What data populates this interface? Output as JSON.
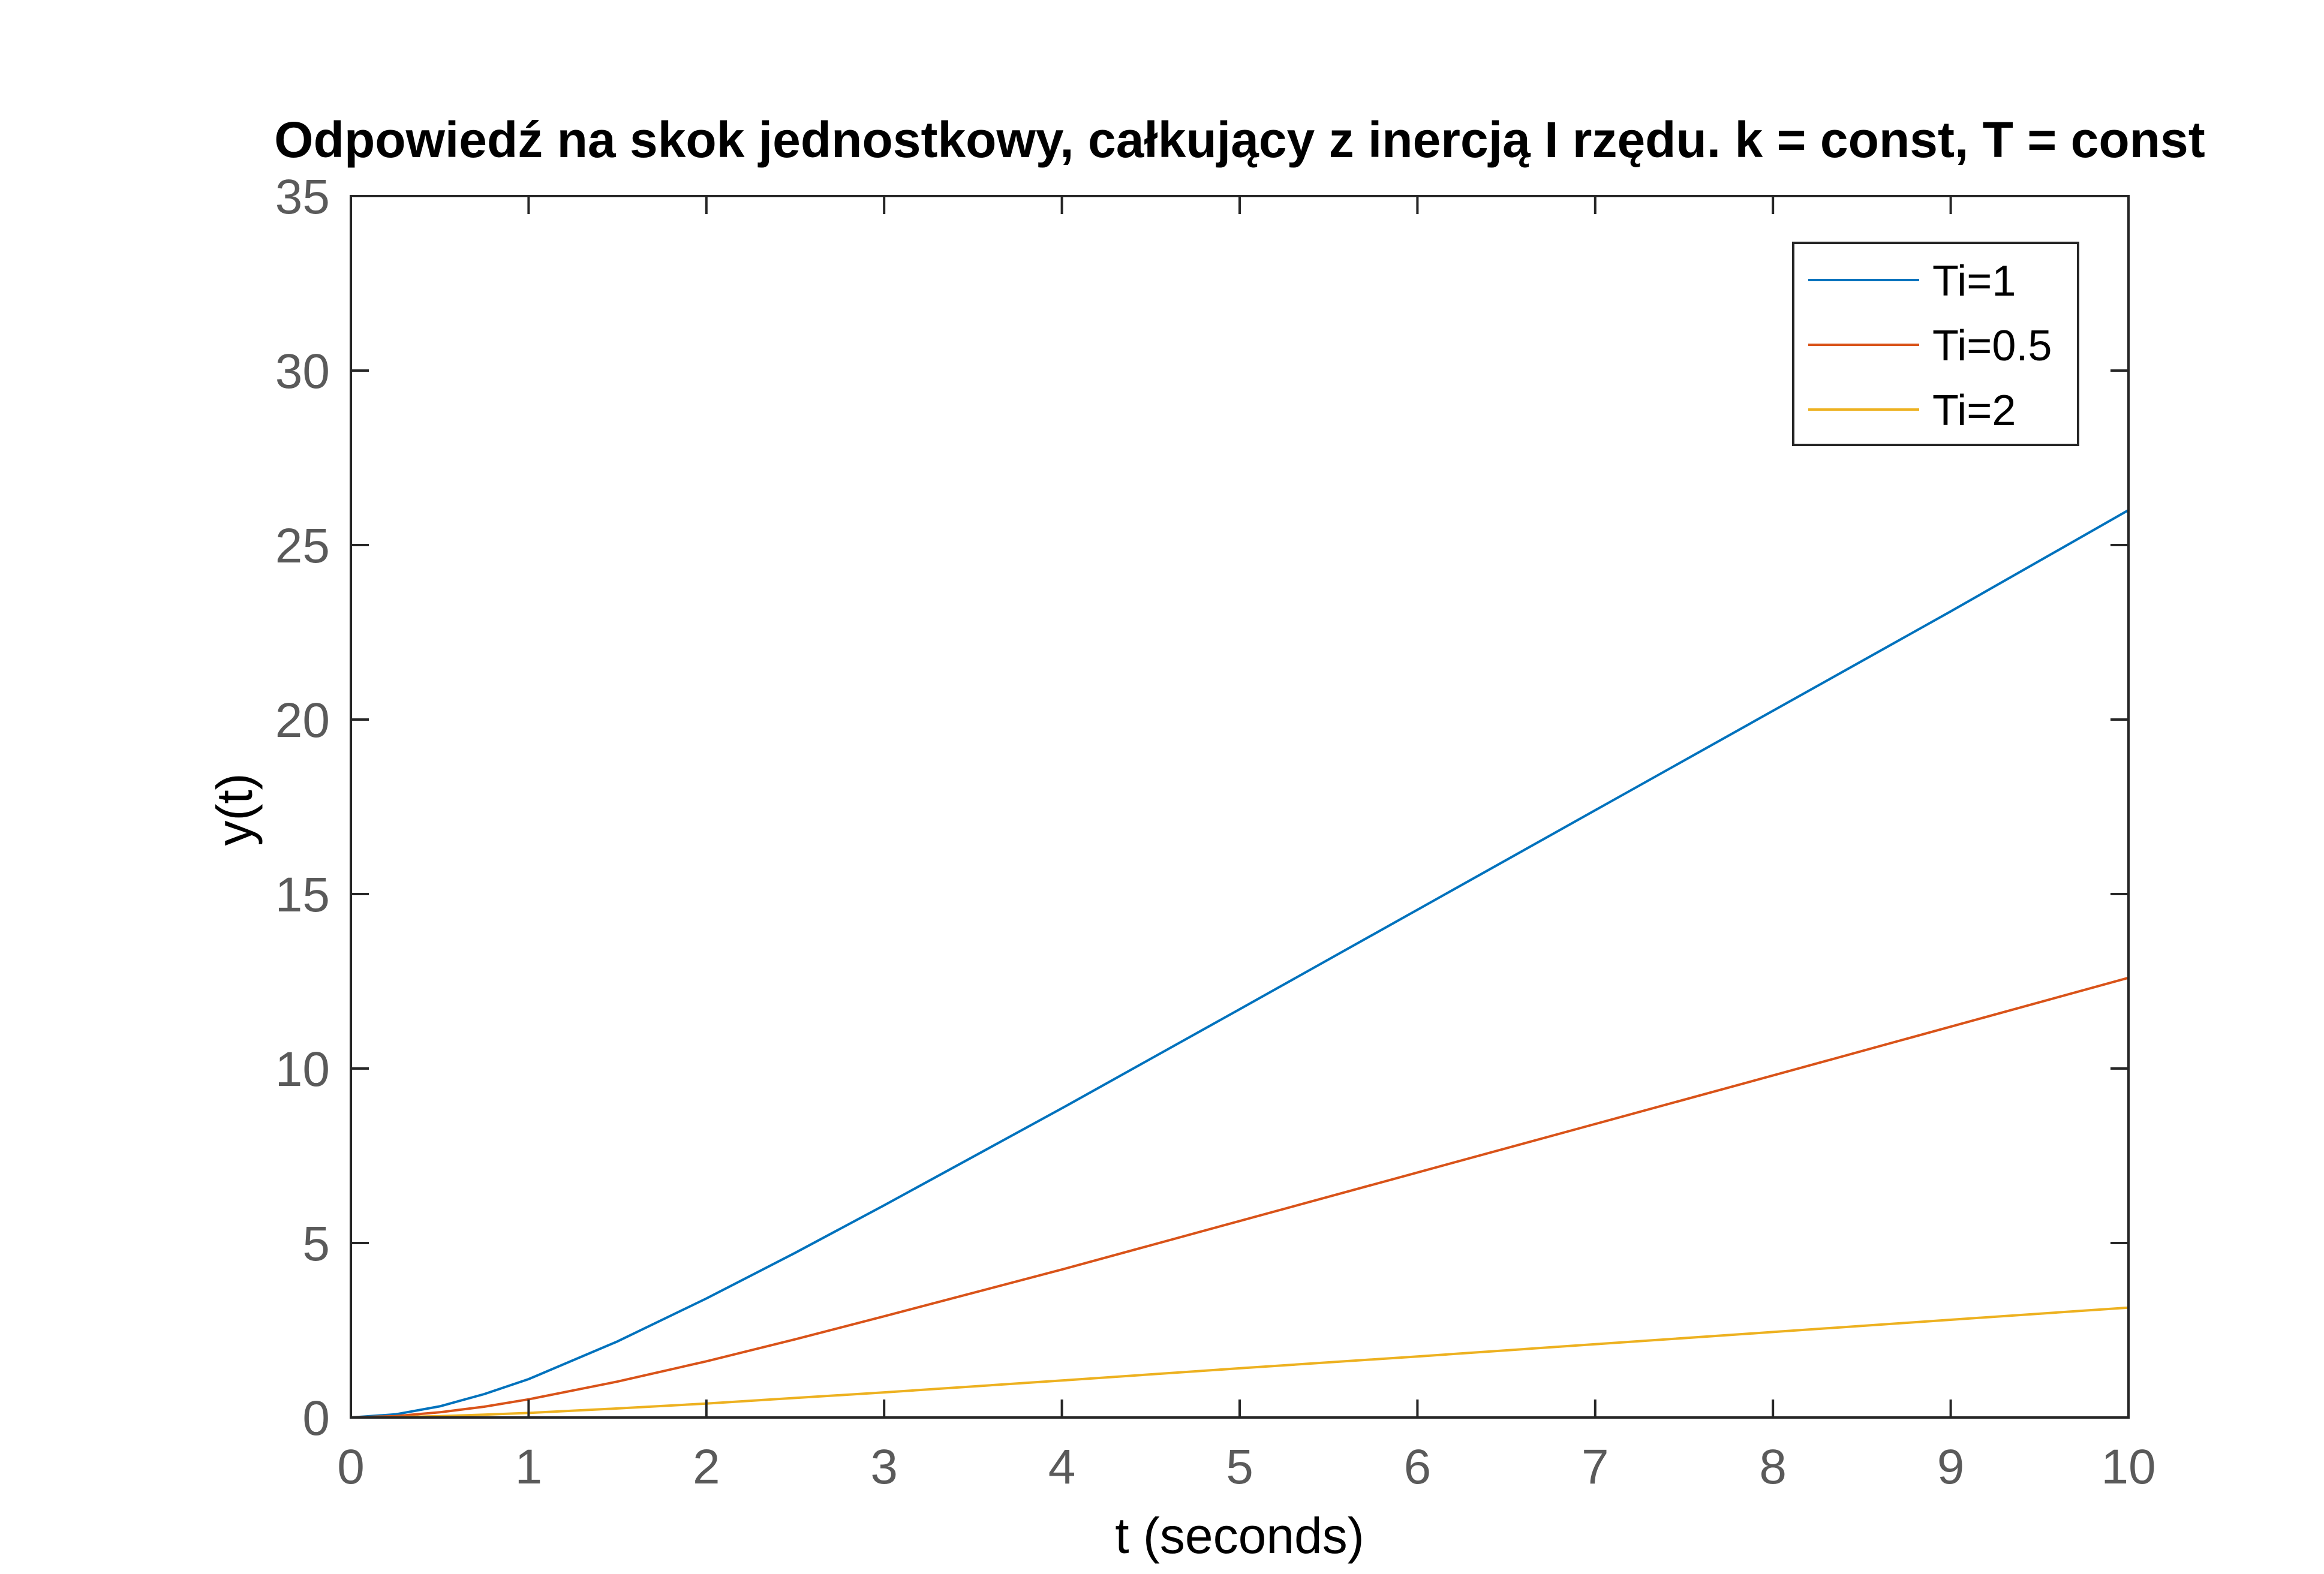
{
  "chart_data": {
    "type": "line",
    "title": "Odpowiedź na skok jednostkowy, całkujący z inercją I rzędu. k = const, T = const",
    "xlabel": "t (seconds)",
    "ylabel": "y(t)",
    "xlim": [
      0,
      10
    ],
    "ylim": [
      0,
      35
    ],
    "xticks": [
      0,
      1,
      2,
      3,
      4,
      5,
      6,
      7,
      8,
      9,
      10
    ],
    "yticks": [
      0,
      5,
      10,
      15,
      20,
      25,
      30,
      35
    ],
    "grid": false,
    "legend_position": "top-right",
    "x": [
      0,
      0.25,
      0.5,
      0.75,
      1,
      1.5,
      2,
      2.5,
      3,
      4,
      5,
      6,
      7,
      8,
      9,
      10
    ],
    "series": [
      {
        "name": "Ti=1",
        "color": "#0072bd",
        "values": [
          0,
          0.09,
          0.32,
          0.67,
          1.1,
          2.18,
          3.41,
          4.72,
          6.08,
          8.86,
          11.7,
          14.55,
          17.4,
          20.25,
          23.1,
          26.0
        ]
      },
      {
        "name": "Ti=0.5",
        "color": "#d95319",
        "values": [
          0,
          0.04,
          0.15,
          0.31,
          0.52,
          1.03,
          1.61,
          2.24,
          2.9,
          4.24,
          5.63,
          7.02,
          8.41,
          9.8,
          11.2,
          12.6
        ]
      },
      {
        "name": "Ti=2",
        "color": "#edb120",
        "values": [
          0,
          0.01,
          0.04,
          0.08,
          0.13,
          0.26,
          0.4,
          0.56,
          0.72,
          1.06,
          1.41,
          1.75,
          2.1,
          2.45,
          2.8,
          3.15
        ]
      }
    ]
  }
}
